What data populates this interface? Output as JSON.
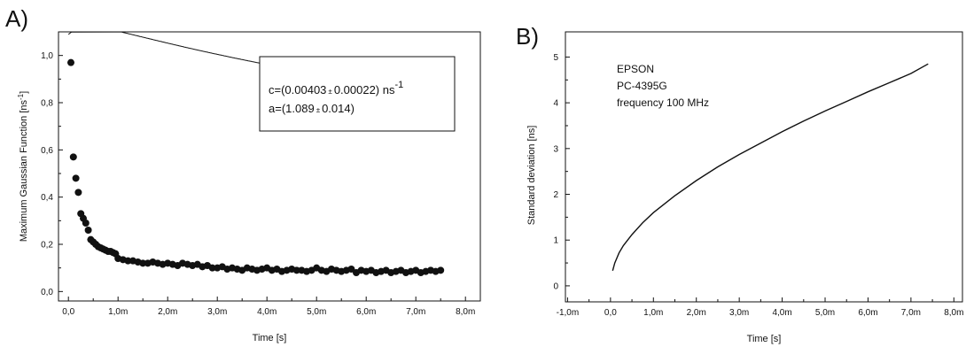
{
  "chart_data": [
    {
      "panel_label": "A)",
      "type": "scatter",
      "xlabel": "Time [s]",
      "ylabel": "Maximum Gaussian Function [ns",
      "ylabel_sup": "-1",
      "ylabel_close": "]",
      "xlim": [
        -0.0002,
        0.0083
      ],
      "ylim": [
        -0.04,
        1.1
      ],
      "x_ticks": [
        0,
        0.001,
        0.002,
        0.003,
        0.004,
        0.005,
        0.006,
        0.007,
        0.008
      ],
      "x_tick_labels": [
        "0,0",
        "1,0m",
        "2,0m",
        "3,0m",
        "4,0m",
        "5,0m",
        "6,0m",
        "7,0m",
        "8,0m"
      ],
      "y_ticks": [
        0,
        0.2,
        0.4,
        0.6,
        0.8,
        1.0
      ],
      "y_tick_labels": [
        "0,0",
        "0,2",
        "0,4",
        "0,6",
        "0,8",
        "1,0"
      ],
      "annotation": {
        "line1": "c=(0.00403",
        "pm1": "±",
        "line1b": "0.00022) ns",
        "line1_sup": "-1",
        "line2": "a=(1.089",
        "pm2": "±",
        "line2b": "0.014)"
      },
      "points_x": [
        5e-05,
        0.0001,
        0.00015,
        0.0002,
        0.00025,
        0.0003,
        0.00035,
        0.0004,
        0.00045,
        0.0005,
        0.00055,
        0.0006,
        0.00065,
        0.0007,
        0.00075,
        0.0008,
        0.00085,
        0.0009,
        0.00095,
        0.001,
        0.0011,
        0.0012,
        0.0013,
        0.0014,
        0.0015,
        0.0016,
        0.0017,
        0.0018,
        0.0019,
        0.002,
        0.0021,
        0.0022,
        0.0023,
        0.0024,
        0.0025,
        0.0026,
        0.0027,
        0.0028,
        0.0029,
        0.003,
        0.0031,
        0.0032,
        0.0033,
        0.0034,
        0.0035,
        0.0036,
        0.0037,
        0.0038,
        0.0039,
        0.004,
        0.0041,
        0.0042,
        0.0043,
        0.0044,
        0.0045,
        0.0046,
        0.0047,
        0.0048,
        0.0049,
        0.005,
        0.0051,
        0.0052,
        0.0053,
        0.0054,
        0.0055,
        0.0056,
        0.0057,
        0.0058,
        0.0059,
        0.006,
        0.0061,
        0.0062,
        0.0063,
        0.0064,
        0.0065,
        0.0066,
        0.0067,
        0.0068,
        0.0069,
        0.007,
        0.0071,
        0.0072,
        0.0073,
        0.0074,
        0.0075
      ],
      "points_y": [
        0.97,
        0.57,
        0.48,
        0.42,
        0.33,
        0.31,
        0.29,
        0.26,
        0.22,
        0.21,
        0.2,
        0.19,
        0.185,
        0.18,
        0.175,
        0.17,
        0.17,
        0.165,
        0.16,
        0.14,
        0.135,
        0.13,
        0.13,
        0.125,
        0.12,
        0.12,
        0.125,
        0.12,
        0.115,
        0.12,
        0.115,
        0.11,
        0.12,
        0.115,
        0.11,
        0.115,
        0.105,
        0.11,
        0.1,
        0.1,
        0.105,
        0.095,
        0.1,
        0.095,
        0.09,
        0.1,
        0.095,
        0.09,
        0.095,
        0.1,
        0.09,
        0.095,
        0.085,
        0.09,
        0.095,
        0.09,
        0.09,
        0.085,
        0.09,
        0.1,
        0.09,
        0.085,
        0.095,
        0.09,
        0.085,
        0.09,
        0.095,
        0.08,
        0.09,
        0.085,
        0.09,
        0.08,
        0.085,
        0.09,
        0.08,
        0.085,
        0.09,
        0.08,
        0.085,
        0.09,
        0.08,
        0.085,
        0.09,
        0.085,
        0.09
      ],
      "fit_model": "a * c / (t_ns + c)",
      "fit_params": {
        "c": 0.00403,
        "a": 1.089
      },
      "grid": false,
      "colors": {
        "points": "#111111",
        "fit": "#111111",
        "axes": "#111111"
      }
    },
    {
      "panel_label": "B)",
      "type": "line",
      "xlabel": "Time [s]",
      "ylabel": "Standard deviation [ns]",
      "xlim": [
        -0.00105,
        0.0082
      ],
      "ylim": [
        -0.35,
        5.55
      ],
      "x_ticks": [
        -0.001,
        0,
        0.001,
        0.002,
        0.003,
        0.004,
        0.005,
        0.006,
        0.007,
        0.008
      ],
      "x_tick_labels": [
        "-1,0m",
        "0,0",
        "1,0m",
        "2,0m",
        "3,0m",
        "4,0m",
        "5,0m",
        "6,0m",
        "7,0m",
        "8,0m"
      ],
      "y_ticks": [
        0,
        1,
        2,
        3,
        4,
        5
      ],
      "y_tick_labels": [
        "0",
        "1",
        "2",
        "3",
        "4",
        "5"
      ],
      "annotation_lines": [
        "EPSON",
        "PC-4395G",
        "frequency 100 MHz"
      ],
      "x": [
        5e-05,
        0.0001,
        0.0002,
        0.0003,
        0.0005,
        0.00075,
        0.001,
        0.0015,
        0.002,
        0.0025,
        0.003,
        0.0035,
        0.004,
        0.0045,
        0.005,
        0.0055,
        0.006,
        0.0065,
        0.007,
        0.0074
      ],
      "y": [
        0.33,
        0.5,
        0.72,
        0.88,
        1.12,
        1.38,
        1.6,
        1.97,
        2.3,
        2.6,
        2.87,
        3.12,
        3.37,
        3.6,
        3.82,
        4.03,
        4.24,
        4.44,
        4.64,
        4.85
      ],
      "grid": false,
      "colors": {
        "line": "#111111",
        "axes": "#111111"
      }
    }
  ]
}
